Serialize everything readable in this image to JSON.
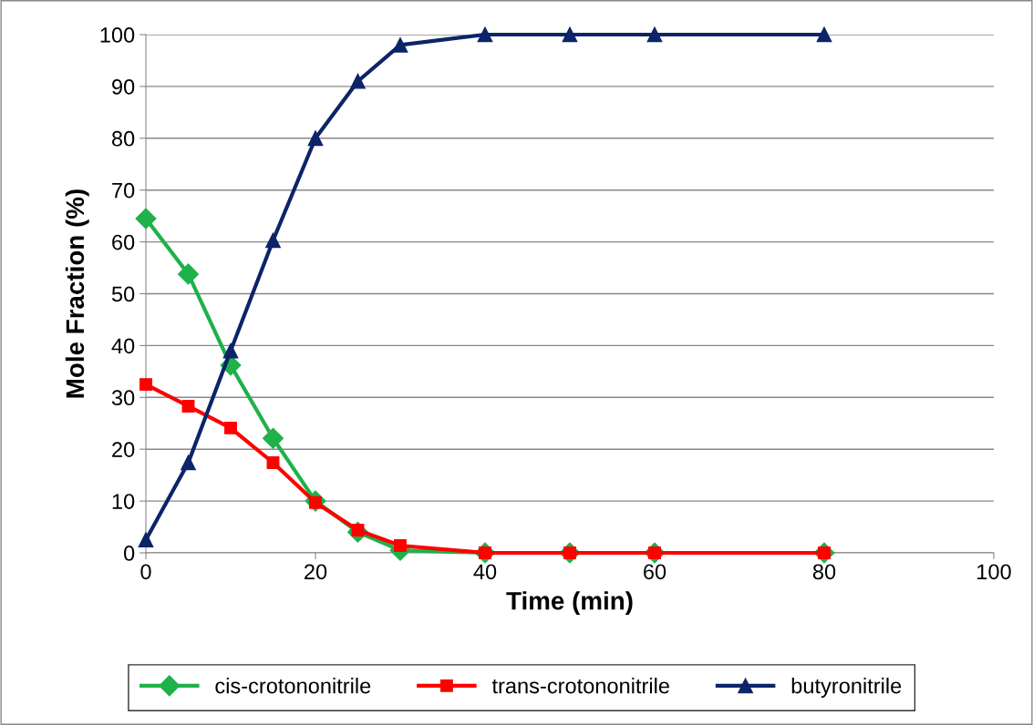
{
  "chart_data": {
    "type": "line",
    "xlabel": "Time (min)",
    "ylabel": "Mole Fraction (%)",
    "x": [
      0,
      5,
      10,
      15,
      20,
      25,
      30,
      40,
      50,
      60,
      80
    ],
    "series": [
      {
        "name": "cis-crotononitrile",
        "color": "#1fb14a",
        "marker": "diamond",
        "values": [
          64.5,
          53.8,
          36.2,
          22.1,
          10,
          4,
          0.5,
          0,
          0,
          0,
          0
        ]
      },
      {
        "name": "trans-crotononitrile",
        "color": "#ff0000",
        "marker": "square",
        "values": [
          32.5,
          28.3,
          24.1,
          17.4,
          9.7,
          4.4,
          1.4,
          0,
          0,
          0,
          0
        ]
      },
      {
        "name": "butyronitrile",
        "color": "#0c2468",
        "marker": "triangle",
        "values": [
          2.5,
          17.4,
          39,
          60.3,
          80,
          91,
          98,
          100,
          100,
          100,
          100
        ]
      }
    ],
    "xlim": [
      0,
      100
    ],
    "xticks": [
      0,
      20,
      40,
      60,
      80,
      100
    ],
    "ylim": [
      0,
      100
    ],
    "yticks": [
      0,
      10,
      20,
      30,
      40,
      50,
      60,
      70,
      80,
      90,
      100
    ],
    "grid": "y",
    "legend": "bottom",
    "line_style": "solid"
  }
}
